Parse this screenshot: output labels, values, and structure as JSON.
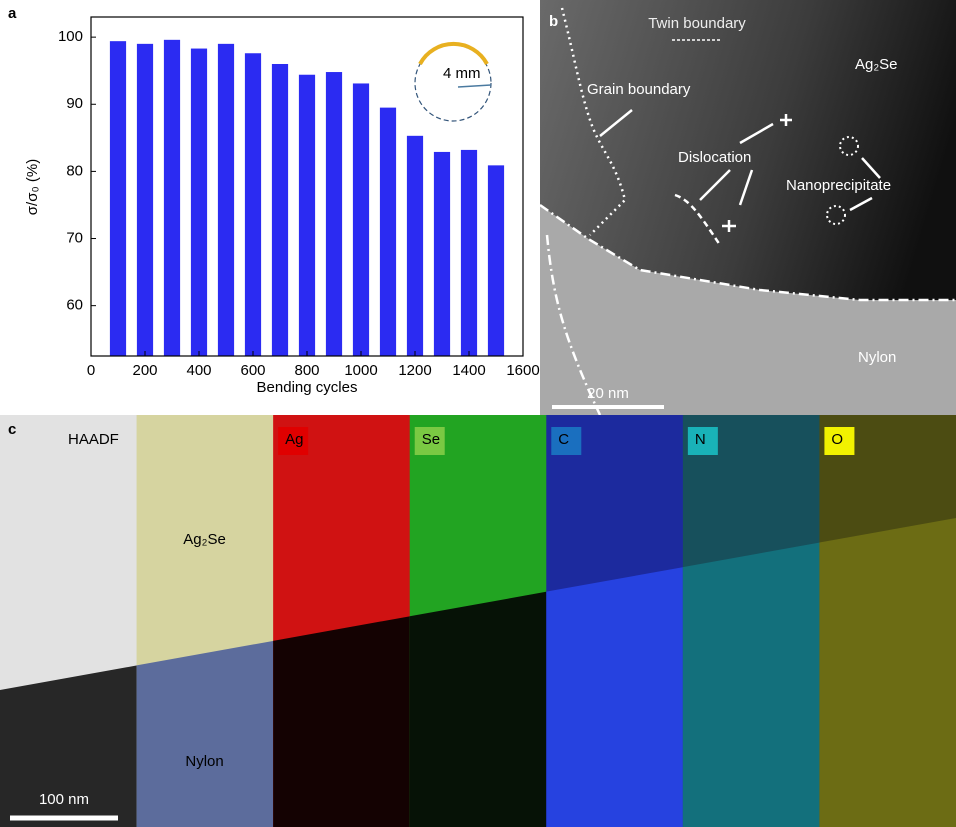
{
  "chart_data": {
    "type": "bar",
    "panel_label": "a",
    "x": [
      100,
      200,
      300,
      400,
      500,
      600,
      700,
      800,
      900,
      1000,
      1100,
      1200,
      1300,
      1400,
      1500
    ],
    "values": [
      99.4,
      99.0,
      99.6,
      98.3,
      99.0,
      97.6,
      96.0,
      94.4,
      94.8,
      93.1,
      89.5,
      85.3,
      82.9,
      83.2,
      80.9
    ],
    "color": "#2b2bf2",
    "xlim": [
      0,
      1600
    ],
    "xticks": [
      0,
      200,
      400,
      600,
      800,
      1000,
      1200,
      1400,
      1600
    ],
    "ylim": [
      52.5,
      103
    ],
    "yticks": [
      60,
      70,
      80,
      90,
      100
    ],
    "xlabel": "Bending cycles",
    "ylabel": "σ/σ₀ (%)",
    "inset_label": "4 mm"
  },
  "panel_b": {
    "label": "b",
    "annotations": [
      "Twin boundary",
      "Ag₂Se",
      "Grain boundary",
      "Dislocation",
      "Nanoprecipitate",
      "Nylon"
    ],
    "scale_bar": "20 nm"
  },
  "panel_c": {
    "label": "c",
    "tiles": [
      "HAADF",
      "Ag",
      "Se",
      "C",
      "N",
      "O"
    ],
    "composite": [
      "Ag₂Se",
      "Nylon"
    ],
    "scale_bar": "100 nm"
  }
}
